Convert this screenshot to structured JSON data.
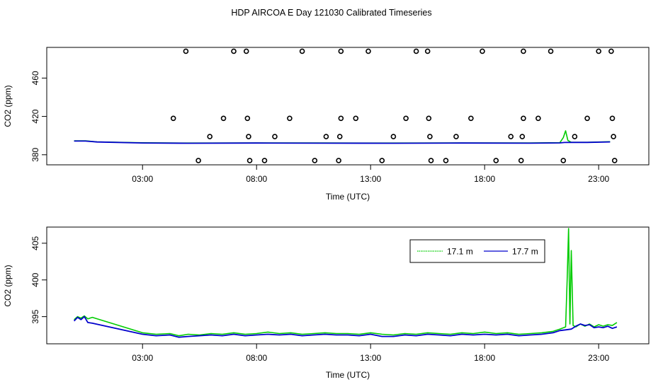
{
  "title": "HDP AIRCOA E  Day 121030  Calibrated Timeseries",
  "colors": {
    "green": "#00cc00",
    "blue": "#0000cc",
    "axis": "#000000",
    "background": "#ffffff"
  },
  "chart_data": [
    {
      "type": "scatter",
      "title": "",
      "xlabel": "Time (UTC)",
      "ylabel": "CO2 (ppm)",
      "xlim": [
        -1.2,
        25.2
      ],
      "ylim": [
        369.5,
        492
      ],
      "x_ticks": [
        3,
        8,
        13,
        18,
        23
      ],
      "x_tick_labels": [
        "03:00",
        "08:00",
        "13:00",
        "18:00",
        "23:00"
      ],
      "y_ticks": [
        380,
        420,
        460
      ],
      "y_tick_labels": [
        "380",
        "420",
        "460"
      ],
      "grid": false,
      "circles": [
        {
          "x": 4.9,
          "y": 488
        },
        {
          "x": 7.0,
          "y": 488
        },
        {
          "x": 7.55,
          "y": 488
        },
        {
          "x": 10.0,
          "y": 488
        },
        {
          "x": 11.7,
          "y": 488
        },
        {
          "x": 12.9,
          "y": 488
        },
        {
          "x": 15.0,
          "y": 488
        },
        {
          "x": 15.5,
          "y": 488
        },
        {
          "x": 17.9,
          "y": 488
        },
        {
          "x": 19.7,
          "y": 488
        },
        {
          "x": 20.9,
          "y": 488
        },
        {
          "x": 23.0,
          "y": 488
        },
        {
          "x": 23.55,
          "y": 488
        },
        {
          "x": 4.35,
          "y": 418
        },
        {
          "x": 6.55,
          "y": 418
        },
        {
          "x": 7.6,
          "y": 418
        },
        {
          "x": 9.45,
          "y": 418
        },
        {
          "x": 11.7,
          "y": 418
        },
        {
          "x": 12.35,
          "y": 418
        },
        {
          "x": 14.55,
          "y": 418
        },
        {
          "x": 15.55,
          "y": 418
        },
        {
          "x": 17.4,
          "y": 418
        },
        {
          "x": 19.7,
          "y": 418
        },
        {
          "x": 20.35,
          "y": 418
        },
        {
          "x": 22.5,
          "y": 418
        },
        {
          "x": 23.6,
          "y": 418
        },
        {
          "x": 5.95,
          "y": 399
        },
        {
          "x": 7.65,
          "y": 399
        },
        {
          "x": 8.8,
          "y": 399
        },
        {
          "x": 11.05,
          "y": 399
        },
        {
          "x": 11.65,
          "y": 399
        },
        {
          "x": 14.0,
          "y": 399
        },
        {
          "x": 15.6,
          "y": 399
        },
        {
          "x": 16.75,
          "y": 399
        },
        {
          "x": 19.15,
          "y": 399
        },
        {
          "x": 19.65,
          "y": 399
        },
        {
          "x": 21.95,
          "y": 399
        },
        {
          "x": 23.65,
          "y": 399
        },
        {
          "x": 5.45,
          "y": 374
        },
        {
          "x": 7.7,
          "y": 374
        },
        {
          "x": 8.35,
          "y": 374
        },
        {
          "x": 10.55,
          "y": 374
        },
        {
          "x": 11.6,
          "y": 374
        },
        {
          "x": 13.5,
          "y": 374
        },
        {
          "x": 15.65,
          "y": 374
        },
        {
          "x": 16.3,
          "y": 374
        },
        {
          "x": 18.5,
          "y": 374
        },
        {
          "x": 19.6,
          "y": 374
        },
        {
          "x": 21.45,
          "y": 374
        },
        {
          "x": 23.7,
          "y": 374
        }
      ],
      "series": [
        {
          "color": "#00cc00",
          "x": [
            0.0,
            0.5,
            1.0,
            3.0,
            5.0,
            8.0,
            11.0,
            14.0,
            17.0,
            20.0,
            21.3,
            21.45,
            21.55,
            21.65,
            21.8,
            22.5,
            23.5
          ],
          "y": [
            394.5,
            394.5,
            393.5,
            392.5,
            392.2,
            392.4,
            392.3,
            392.2,
            392.4,
            392.3,
            392.6,
            398.0,
            405.0,
            395.0,
            393.0,
            393.0,
            393.6
          ]
        },
        {
          "color": "#0000cc",
          "x": [
            0.0,
            0.5,
            1.0,
            3.0,
            5.0,
            8.0,
            11.0,
            14.0,
            17.0,
            20.0,
            21.3,
            21.5,
            21.8,
            22.5,
            23.5
          ],
          "y": [
            394.3,
            394.3,
            393.3,
            392.3,
            392.0,
            392.2,
            392.1,
            392.0,
            392.2,
            392.1,
            392.4,
            392.8,
            392.9,
            392.9,
            393.4
          ]
        }
      ]
    },
    {
      "type": "line",
      "title": "",
      "xlabel": "Time (UTC)",
      "ylabel": "CO2 (ppm)",
      "xlim": [
        -1.2,
        25.2
      ],
      "ylim": [
        391.3,
        407.2
      ],
      "x_ticks": [
        3,
        8,
        13,
        18,
        23
      ],
      "x_tick_labels": [
        "03:00",
        "08:00",
        "13:00",
        "18:00",
        "23:00"
      ],
      "y_ticks": [
        395,
        400,
        405
      ],
      "y_tick_labels": [
        "395",
        "400",
        "405"
      ],
      "grid": false,
      "legend": {
        "placement": "top-right",
        "entries": [
          {
            "label": "17.1 m",
            "color": "#00cc00"
          },
          {
            "label": "17.7 m",
            "color": "#0000cc"
          }
        ]
      },
      "series": [
        {
          "name": "17.1 m",
          "color": "#00cc00",
          "x": [
            0.0,
            0.15,
            0.3,
            0.45,
            0.6,
            0.8,
            3.0,
            3.6,
            4.2,
            4.6,
            5.0,
            5.5,
            6.0,
            6.5,
            7.0,
            7.5,
            8.0,
            8.5,
            9.0,
            9.5,
            10.0,
            10.5,
            11.0,
            11.5,
            12.0,
            12.5,
            13.0,
            13.5,
            14.0,
            14.5,
            15.0,
            15.5,
            16.0,
            16.5,
            17.0,
            17.5,
            18.0,
            18.5,
            19.0,
            19.5,
            20.0,
            20.5,
            21.0,
            21.3,
            21.55,
            21.62,
            21.68,
            21.74,
            21.8,
            21.88,
            22.0,
            22.2,
            22.4,
            22.6,
            22.8,
            23.0,
            23.2,
            23.4,
            23.6,
            23.8
          ],
          "y": [
            394.6,
            395.0,
            394.8,
            395.1,
            394.7,
            394.9,
            392.8,
            392.6,
            392.7,
            392.4,
            392.6,
            392.5,
            392.7,
            392.6,
            392.8,
            392.6,
            392.7,
            392.9,
            392.7,
            392.8,
            392.6,
            392.7,
            392.8,
            392.7,
            392.7,
            392.6,
            392.8,
            392.6,
            392.5,
            392.7,
            392.6,
            392.8,
            392.7,
            392.6,
            392.8,
            392.7,
            392.9,
            392.7,
            392.8,
            392.6,
            392.7,
            392.8,
            393.0,
            393.3,
            393.6,
            400.0,
            407.0,
            394.0,
            404.0,
            393.8,
            393.6,
            394.0,
            393.7,
            394.0,
            393.6,
            393.9,
            393.7,
            393.9,
            393.8,
            394.2
          ]
        },
        {
          "name": "17.7 m",
          "color": "#0000cc",
          "x": [
            0.0,
            0.15,
            0.3,
            0.45,
            0.6,
            0.8,
            3.0,
            3.6,
            4.2,
            4.6,
            5.0,
            5.5,
            6.0,
            6.5,
            7.0,
            7.5,
            8.0,
            8.5,
            9.0,
            9.5,
            10.0,
            10.5,
            11.0,
            11.5,
            12.0,
            12.5,
            13.0,
            13.5,
            14.0,
            14.5,
            15.0,
            15.5,
            16.0,
            16.5,
            17.0,
            17.5,
            18.0,
            18.5,
            19.0,
            19.5,
            20.0,
            20.5,
            21.0,
            21.3,
            21.55,
            21.8,
            22.0,
            22.2,
            22.4,
            22.6,
            22.8,
            23.0,
            23.2,
            23.4,
            23.6,
            23.8
          ],
          "y": [
            394.4,
            394.9,
            394.6,
            395.0,
            394.2,
            394.1,
            392.6,
            392.4,
            392.5,
            392.2,
            392.3,
            392.4,
            392.5,
            392.4,
            392.6,
            392.4,
            392.5,
            392.6,
            392.5,
            392.6,
            392.4,
            392.5,
            392.6,
            392.5,
            392.5,
            392.4,
            392.6,
            392.3,
            392.3,
            392.5,
            392.4,
            392.6,
            392.5,
            392.4,
            392.6,
            392.5,
            392.6,
            392.5,
            392.6,
            392.4,
            392.5,
            392.6,
            392.8,
            393.1,
            393.2,
            393.3,
            393.7,
            394.0,
            393.8,
            393.9,
            393.5,
            393.6,
            393.5,
            393.7,
            393.4,
            393.6
          ]
        }
      ]
    }
  ]
}
